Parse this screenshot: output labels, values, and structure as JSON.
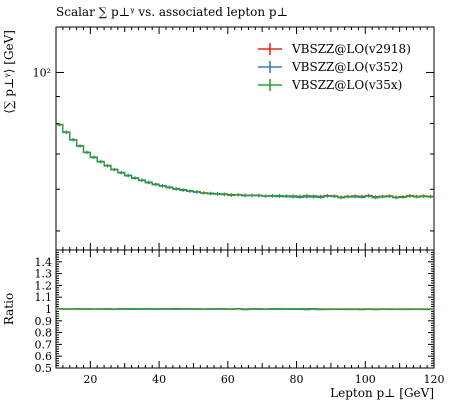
{
  "chart_data": {
    "type": "line",
    "title": "Scalar ∑ p⊥ᵞ vs. associated lepton p⊥",
    "xlabel": "Lepton p⊥ [GeV]",
    "ylabel": "⟨∑ p⊥ᵞ⟩ [GeV]",
    "ratio_ylabel": "Ratio",
    "x_ticks": [
      "20",
      "40",
      "60",
      "80",
      "100",
      "120"
    ],
    "y_ticks": [
      "10²"
    ],
    "ratio_ticks": [
      "0.5",
      "0.6",
      "0.7",
      "0.8",
      "0.9",
      "1",
      "1.1",
      "1.2",
      "1.3",
      "1.4"
    ],
    "xlim": [
      10,
      120
    ],
    "ylim": [
      46,
      122
    ],
    "y_scale": "log",
    "ratio_ylim": [
      0.5,
      1.5
    ],
    "legend_position": "top-right",
    "bin_edges": [
      10,
      12,
      14,
      16,
      18,
      20,
      22,
      24,
      26,
      28,
      30,
      32,
      34,
      36,
      38,
      40,
      42,
      44,
      46,
      48,
      50,
      52,
      54,
      56,
      58,
      60,
      62,
      64,
      66,
      68,
      70,
      72,
      74,
      76,
      78,
      80,
      82,
      84,
      86,
      88,
      90,
      92,
      94,
      96,
      98,
      100,
      102,
      104,
      106,
      108,
      110,
      112,
      114,
      116,
      118,
      120
    ],
    "series": [
      {
        "name": "VBSZZ@LO(v2918)",
        "color": "#e8281d",
        "values": [
          79.5,
          77.0,
          74.5,
          72.5,
          70.5,
          69.0,
          67.7,
          66.5,
          65.5,
          64.5,
          63.7,
          63.0,
          62.4,
          61.8,
          61.3,
          60.9,
          60.5,
          60.1,
          59.8,
          59.5,
          59.3,
          59.1,
          58.9,
          58.8,
          58.7,
          58.6,
          58.5,
          58.5,
          58.4,
          58.4,
          58.3,
          58.3,
          58.3,
          58.2,
          58.2,
          58.1,
          58.3,
          58.1,
          58.2,
          58.4,
          58.3,
          58.0,
          58.2,
          58.3,
          58.2,
          58.4,
          58.1,
          58.2,
          58.3,
          58.0,
          58.1,
          58.4,
          58.2,
          58.3,
          58.2
        ],
        "ratio": [
          1.0,
          1.0,
          1.0,
          1.0,
          1.0,
          1.0,
          1.0,
          1.0,
          1.0,
          1.0,
          1.0,
          1.0,
          1.0,
          1.0,
          1.0,
          1.0,
          1.0,
          1.0,
          1.0,
          1.0,
          1.0,
          1.0,
          1.0,
          1.0,
          1.0,
          1.0,
          1.0,
          1.0,
          1.0,
          1.0,
          1.0,
          1.0,
          1.0,
          1.0,
          1.0,
          1.0,
          1.0,
          1.0,
          1.0,
          1.0,
          1.0,
          1.0,
          1.0,
          1.0,
          1.0,
          1.0,
          1.0,
          1.0,
          1.0,
          1.0,
          1.0,
          1.0,
          1.0,
          1.0,
          1.0
        ]
      },
      {
        "name": "VBSZZ@LO(v352)",
        "color": "#3b78c2",
        "values": [
          79.6,
          76.9,
          74.6,
          72.4,
          70.6,
          68.9,
          67.8,
          66.4,
          65.4,
          64.6,
          63.6,
          63.1,
          62.3,
          61.9,
          61.2,
          61.0,
          60.4,
          60.2,
          59.7,
          59.6,
          59.2,
          59.0,
          58.8,
          58.9,
          58.6,
          58.5,
          58.6,
          58.3,
          58.5,
          58.3,
          58.2,
          58.4,
          58.1,
          58.3,
          58.0,
          58.2,
          58.0,
          58.3,
          57.9,
          58.2,
          58.1,
          57.8,
          58.0,
          58.2,
          57.9,
          58.3,
          57.8,
          58.0,
          58.1,
          57.8,
          57.9,
          58.2,
          58.0,
          58.1,
          58.0
        ],
        "ratio": [
          1.001,
          0.999,
          1.001,
          0.999,
          1.001,
          0.999,
          1.001,
          0.998,
          0.998,
          1.002,
          0.998,
          1.002,
          0.998,
          1.002,
          0.998,
          1.002,
          0.998,
          1.003,
          0.998,
          1.002,
          0.998,
          0.998,
          0.998,
          1.002,
          0.998,
          0.998,
          1.002,
          0.995,
          1.002,
          0.998,
          0.998,
          1.003,
          0.997,
          1.002,
          0.997,
          1.002,
          0.995,
          1.003,
          0.995,
          0.996,
          0.997,
          0.997,
          0.996,
          0.998,
          0.995,
          0.998,
          0.995,
          0.997,
          0.996,
          0.997,
          0.996,
          0.996,
          0.997,
          0.996,
          0.997
        ]
      },
      {
        "name": "VBSZZ@LO(v35x)",
        "color": "#2ca02c",
        "values": [
          79.7,
          77.1,
          74.4,
          72.6,
          70.4,
          69.1,
          67.6,
          66.6,
          65.3,
          64.4,
          63.8,
          62.9,
          62.5,
          61.7,
          61.4,
          60.8,
          60.6,
          60.0,
          59.9,
          59.4,
          59.4,
          59.0,
          59.0,
          58.7,
          58.8,
          58.4,
          58.6,
          58.4,
          58.3,
          58.5,
          58.2,
          58.2,
          58.4,
          58.1,
          58.3,
          57.9,
          58.4,
          58.0,
          58.1,
          58.3,
          58.2,
          57.9,
          58.1,
          58.0,
          58.1,
          58.2,
          58.0,
          58.1,
          58.2,
          57.9,
          58.0,
          58.3,
          58.1,
          58.2,
          58.1
        ],
        "ratio": [
          1.002,
          1.001,
          0.999,
          1.002,
          0.998,
          1.001,
          0.999,
          1.002,
          0.997,
          0.998,
          1.002,
          0.997,
          1.002,
          0.998,
          1.002,
          0.998,
          1.002,
          0.998,
          1.002,
          0.998,
          1.002,
          0.998,
          1.002,
          0.998,
          1.002,
          0.997,
          1.002,
          0.998,
          0.998,
          1.002,
          0.998,
          0.998,
          1.002,
          0.998,
          1.002,
          0.997,
          1.002,
          0.998,
          0.998,
          0.998,
          0.998,
          0.998,
          0.998,
          0.996,
          0.998,
          0.997,
          0.998,
          0.998,
          0.998,
          0.998,
          0.998,
          0.998,
          0.998,
          0.998,
          0.998
        ]
      }
    ]
  }
}
